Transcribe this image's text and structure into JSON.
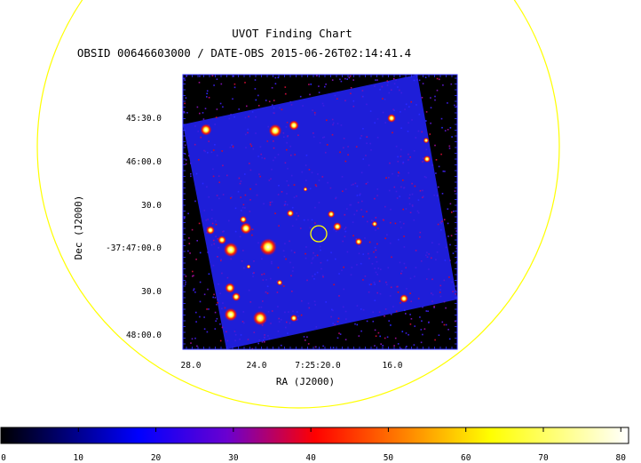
{
  "title": "UVOT Finding Chart",
  "subtitle": "OBSID 00646603000 / DATE-OBS 2015-06-26T02:14:41.4",
  "xlabel": "RA (J2000)",
  "ylabel": "Dec (J2000)",
  "ra_ticks": [
    "28.0",
    "24.0",
    "7:25:20.0",
    "16.0"
  ],
  "dec_ticks": [
    "45:30.0",
    "46:00.0",
    "30.0",
    "-37:47:00.0",
    "30.0",
    "48:00.0"
  ],
  "colorbar": {
    "ticks": [
      "0",
      "10",
      "20",
      "30",
      "40",
      "50",
      "60",
      "70",
      "80"
    ],
    "range": [
      0,
      81
    ],
    "stops": [
      "#000000",
      "#0000ff",
      "#6a00d0",
      "#ff0000",
      "#ffff00",
      "#ffffff"
    ]
  },
  "colors": {
    "fov_circle": "#ffff00",
    "target_circle": "#ffff00",
    "frame": "#3333ff",
    "sky": "#1e1ed8",
    "outside": "#000000"
  }
}
